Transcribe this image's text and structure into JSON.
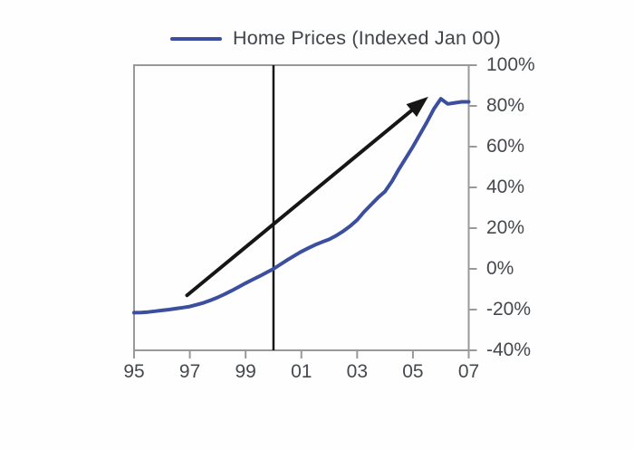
{
  "legend": {
    "label": "Home Prices (Indexed Jan 00)",
    "swatch_color": "#3b4f9e"
  },
  "chart_data": {
    "type": "line",
    "title": "Home Prices (Indexed Jan 00)",
    "xlabel": "",
    "ylabel": "",
    "legend_position": "top",
    "grid": false,
    "xlim": [
      1995,
      2007
    ],
    "ylim": [
      -40,
      100
    ],
    "x_tick_labels": [
      "95",
      "97",
      "99",
      "01",
      "03",
      "05",
      "07"
    ],
    "x_tick_years": [
      1995,
      1997,
      1999,
      2001,
      2003,
      2005,
      2007
    ],
    "y_tick_labels": [
      "100%",
      "80%",
      "60%",
      "40%",
      "20%",
      "0%",
      "-20%",
      "-40%"
    ],
    "y_tick_values": [
      100,
      80,
      60,
      40,
      20,
      0,
      -20,
      -40
    ],
    "series": [
      {
        "name": "Home Prices (Indexed Jan 00)",
        "color": "#3b4f9e",
        "x": [
          1995,
          1995.25,
          1995.5,
          1995.75,
          1996,
          1996.25,
          1996.5,
          1996.75,
          1997,
          1997.25,
          1997.5,
          1997.75,
          1998,
          1998.25,
          1998.5,
          1998.75,
          1999,
          1999.25,
          1999.5,
          1999.75,
          2000,
          2000.25,
          2000.5,
          2000.75,
          2001,
          2001.25,
          2001.5,
          2001.75,
          2002,
          2002.25,
          2002.5,
          2002.75,
          2003,
          2003.25,
          2003.5,
          2003.75,
          2004,
          2004.25,
          2004.5,
          2004.75,
          2005,
          2005.25,
          2005.5,
          2005.75,
          2006,
          2006.25,
          2006.5,
          2006.75,
          2007
        ],
        "values": [
          -21.5,
          -21.4,
          -21.2,
          -20.8,
          -20.4,
          -20.0,
          -19.5,
          -19.0,
          -18.5,
          -17.6,
          -16.6,
          -15.4,
          -14.0,
          -12.4,
          -10.7,
          -8.9,
          -7.0,
          -5.3,
          -3.6,
          -1.8,
          0.0,
          2.2,
          4.4,
          6.5,
          8.5,
          10.2,
          11.8,
          13.2,
          14.5,
          16.3,
          18.5,
          21.0,
          24.0,
          28.0,
          31.5,
          35.0,
          38.0,
          43.0,
          49.0,
          54.5,
          60.0,
          66.0,
          72.0,
          78.5,
          83.5,
          81.0,
          81.5,
          82.0,
          82.0
        ]
      }
    ],
    "annotations": {
      "vertical_line_x": 2000,
      "arrow": {
        "from": [
          1996.9,
          -13.0
        ],
        "to": [
          2005.55,
          84.5
        ]
      }
    },
    "colors": {
      "axis": "#999999",
      "tick_text": "#45484d",
      "annotation_black": "#161616",
      "line_blue": "#3b4f9e"
    }
  }
}
